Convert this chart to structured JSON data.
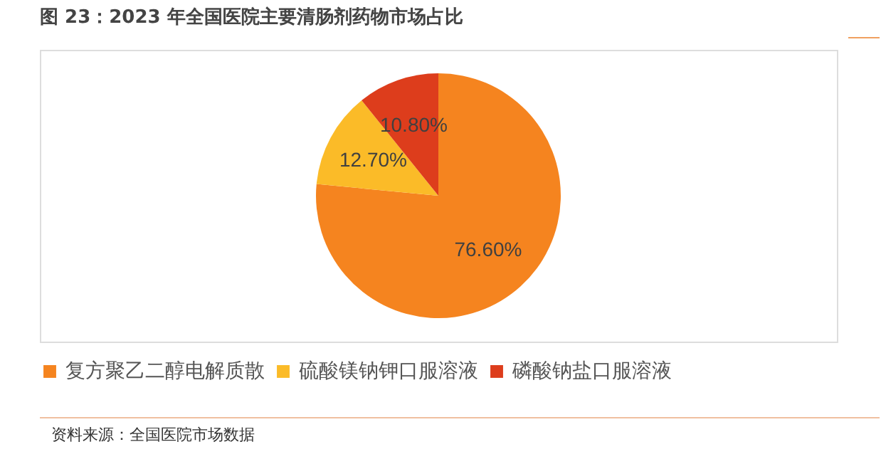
{
  "chart_data": {
    "type": "pie",
    "title": "图 23：2023 年全国医院主要清肠剂药物市场占比",
    "categories": [
      "复方聚乙二醇电解质散",
      "硫酸镁钠钾口服溶液",
      "磷酸钠盐口服溶液"
    ],
    "values": [
      76.6,
      12.7,
      10.8
    ],
    "colors": [
      "#f5841f",
      "#fbbb28",
      "#dd3d1c"
    ],
    "value_labels": [
      "76.60%",
      "12.70%",
      "10.80%"
    ],
    "legend": "bottom",
    "annotations": [
      "资料来源：全国医院市场数据"
    ]
  }
}
